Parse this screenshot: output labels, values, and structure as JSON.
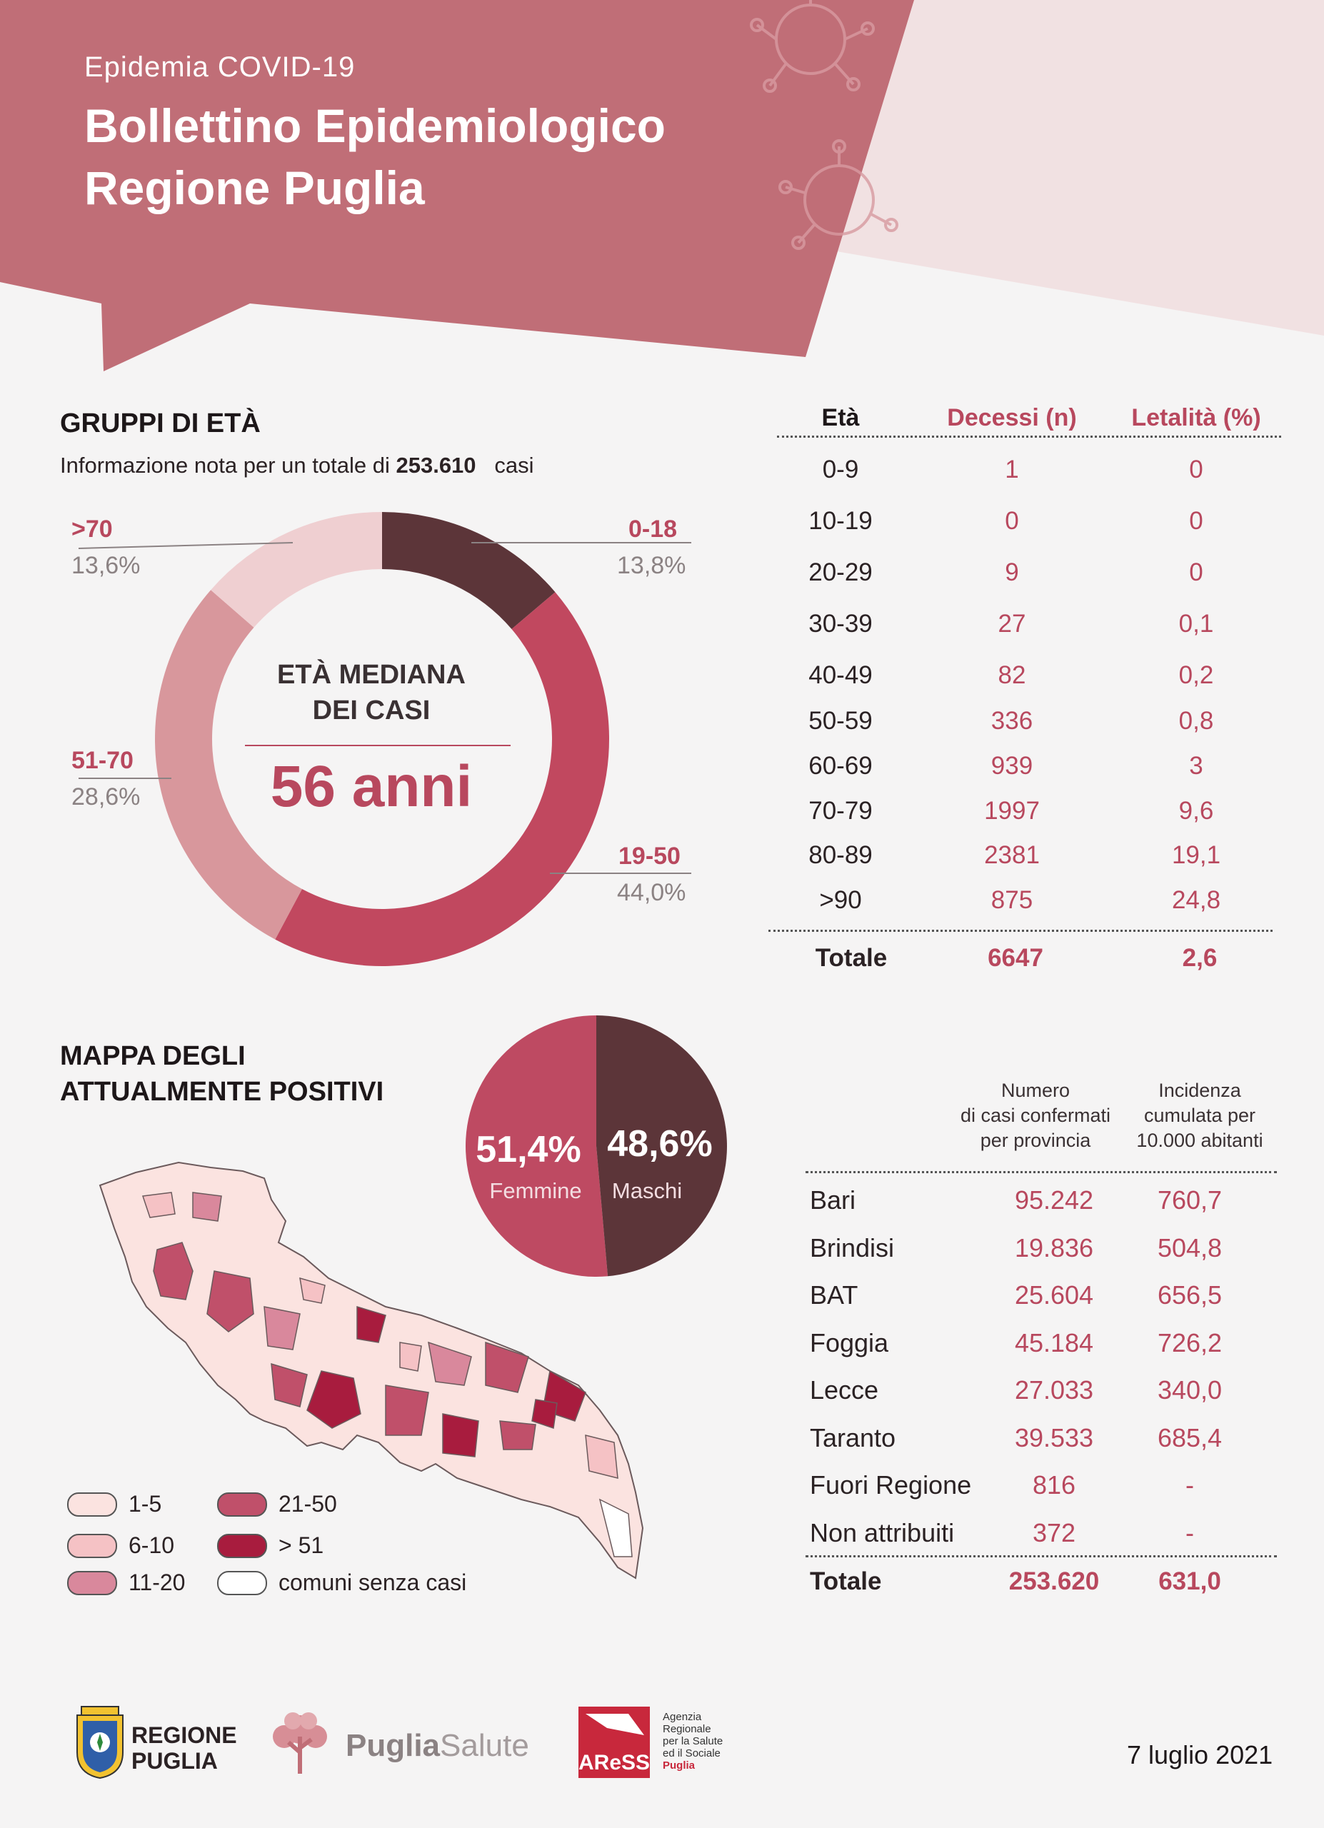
{
  "header": {
    "kicker": "Epidemia COVID-19",
    "title_line1": "Bollettino Epidemiologico",
    "title_line2": "Regione Puglia"
  },
  "age_section": {
    "title": "GRUPPI DI ETÀ",
    "info_prefix": "Informazione nota per un totale di",
    "info_total": "253.610",
    "info_suffix": "casi",
    "center_label_line1": "ETÀ MEDIANA",
    "center_label_line2": "DEI CASI",
    "center_value": "56 anni"
  },
  "deaths_table": {
    "headers": [
      "Età",
      "Decessi (n)",
      "Letalità (%)"
    ],
    "rows": [
      [
        "0-9",
        "1",
        "0"
      ],
      [
        "10-19",
        "0",
        "0"
      ],
      [
        "20-29",
        "9",
        "0"
      ],
      [
        "30-39",
        "27",
        "0,1"
      ],
      [
        "40-49",
        "82",
        "0,2"
      ],
      [
        "50-59",
        "336",
        "0,8"
      ],
      [
        "60-69",
        "939",
        "3"
      ],
      [
        "70-79",
        "1997",
        "9,6"
      ],
      [
        "80-89",
        "2381",
        "19,1"
      ],
      [
        ">90",
        "875",
        "24,8"
      ]
    ],
    "total": [
      "Totale",
      "6647",
      "2,6"
    ]
  },
  "map_section": {
    "title_line1": "MAPPA DEGLI",
    "title_line2": "ATTUALMENTE POSITIVI",
    "legend": [
      {
        "label": "1-5",
        "color": "#fbe3e0"
      },
      {
        "label": "6-10",
        "color": "#f5c2c5"
      },
      {
        "label": "11-20",
        "color": "#d9889c"
      },
      {
        "label": "21-50",
        "color": "#c0506a"
      },
      {
        "label": "> 51",
        "color": "#a81c3e"
      },
      {
        "label": "comuni senza casi",
        "color": "#ffffff"
      }
    ]
  },
  "province_table": {
    "header_cases": [
      "Numero",
      "di casi confermati",
      "per provincia"
    ],
    "header_incidence": [
      "Incidenza",
      "cumulata per",
      "10.000 abitanti"
    ],
    "rows": [
      [
        "Bari",
        "95.242",
        "760,7"
      ],
      [
        "Brindisi",
        "19.836",
        "504,8"
      ],
      [
        "BAT",
        "25.604",
        "656,5"
      ],
      [
        "Foggia",
        "45.184",
        "726,2"
      ],
      [
        "Lecce",
        "27.033",
        "340,0"
      ],
      [
        "Taranto",
        "39.533",
        "685,4"
      ],
      [
        "Fuori Regione",
        "816",
        "-"
      ],
      [
        "Non attribuiti",
        "372",
        "-"
      ]
    ],
    "total": [
      "Totale",
      "253.620",
      "631,0"
    ]
  },
  "chart_data": [
    {
      "type": "pie",
      "variant": "donut",
      "title": "GRUPPI DI ETÀ",
      "categories": [
        "0-18",
        "19-50",
        "51-70",
        ">70"
      ],
      "labels": [
        "13,8%",
        "44,0%",
        "28,6%",
        "13,6%"
      ],
      "values": [
        13.8,
        44.0,
        28.6,
        13.6
      ],
      "colors": [
        "#5c3539",
        "#c1485f",
        "#d8979c",
        "#efcfd1"
      ]
    },
    {
      "type": "pie",
      "categories": [
        "Femmine",
        "Maschi"
      ],
      "labels": [
        "51,4%",
        "48,6%"
      ],
      "values": [
        51.4,
        48.6
      ],
      "colors": [
        "#be4a62",
        "#5c3539"
      ]
    }
  ],
  "footer": {
    "logo1_line1": "REGIONE",
    "logo1_line2": "PUGLIA",
    "logo2_part1": "Puglia",
    "logo2_part2": "Salute",
    "logo3_mark": "AReSS",
    "logo3_lines": [
      "Agenzia",
      "Regionale",
      "per la Salute",
      "ed il Sociale",
      "Puglia"
    ],
    "date": "7 luglio 2021"
  }
}
